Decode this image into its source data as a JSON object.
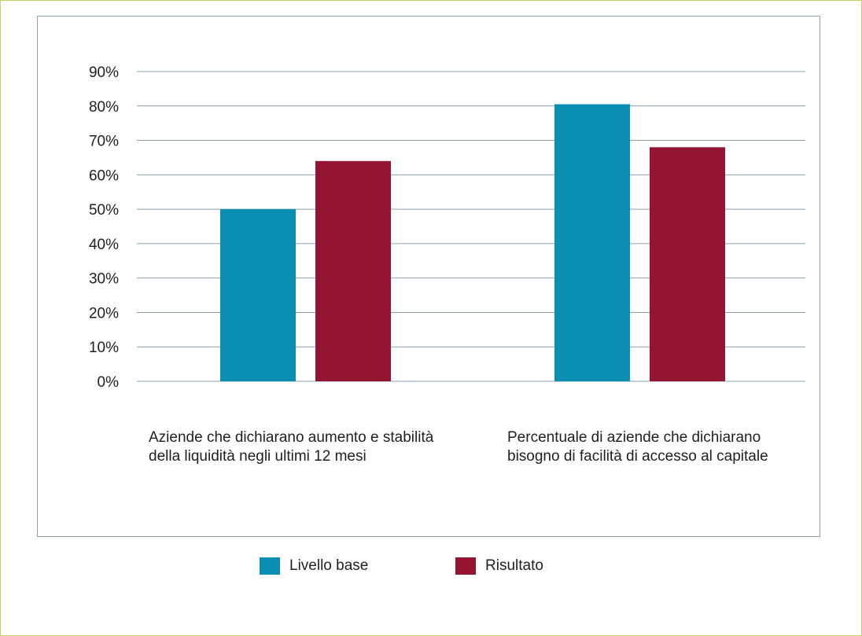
{
  "chart_data": {
    "type": "bar",
    "categories": [
      "Aziende che dichiarano aumento e stabilità della liquidità negli ultimi 12 mesi",
      "Percentuale di aziende che dichiarano bisogno di facilità di accesso al capitale"
    ],
    "category_lines": [
      [
        "Aziende che dichiarano aumento e stabilità",
        "della liquidità negli ultimi 12 mesi"
      ],
      [
        "Percentuale di aziende che dichiarano",
        "bisogno di facilità di accesso al capitale"
      ]
    ],
    "series": [
      {
        "name": "Livello base",
        "color": "#0a8fb3",
        "values": [
          50,
          80.5
        ]
      },
      {
        "name": "Risultato",
        "color": "#951432",
        "values": [
          64,
          68
        ]
      }
    ],
    "ylim": [
      0,
      90
    ],
    "yticks": [
      0,
      10,
      20,
      30,
      40,
      50,
      60,
      70,
      80,
      90
    ],
    "ytick_labels": [
      "0%",
      "10%",
      "20%",
      "30%",
      "40%",
      "50%",
      "60%",
      "70%",
      "80%",
      "90%"
    ],
    "grid": true,
    "grid_color": "#8ea0b4",
    "legend_position": "bottom"
  }
}
